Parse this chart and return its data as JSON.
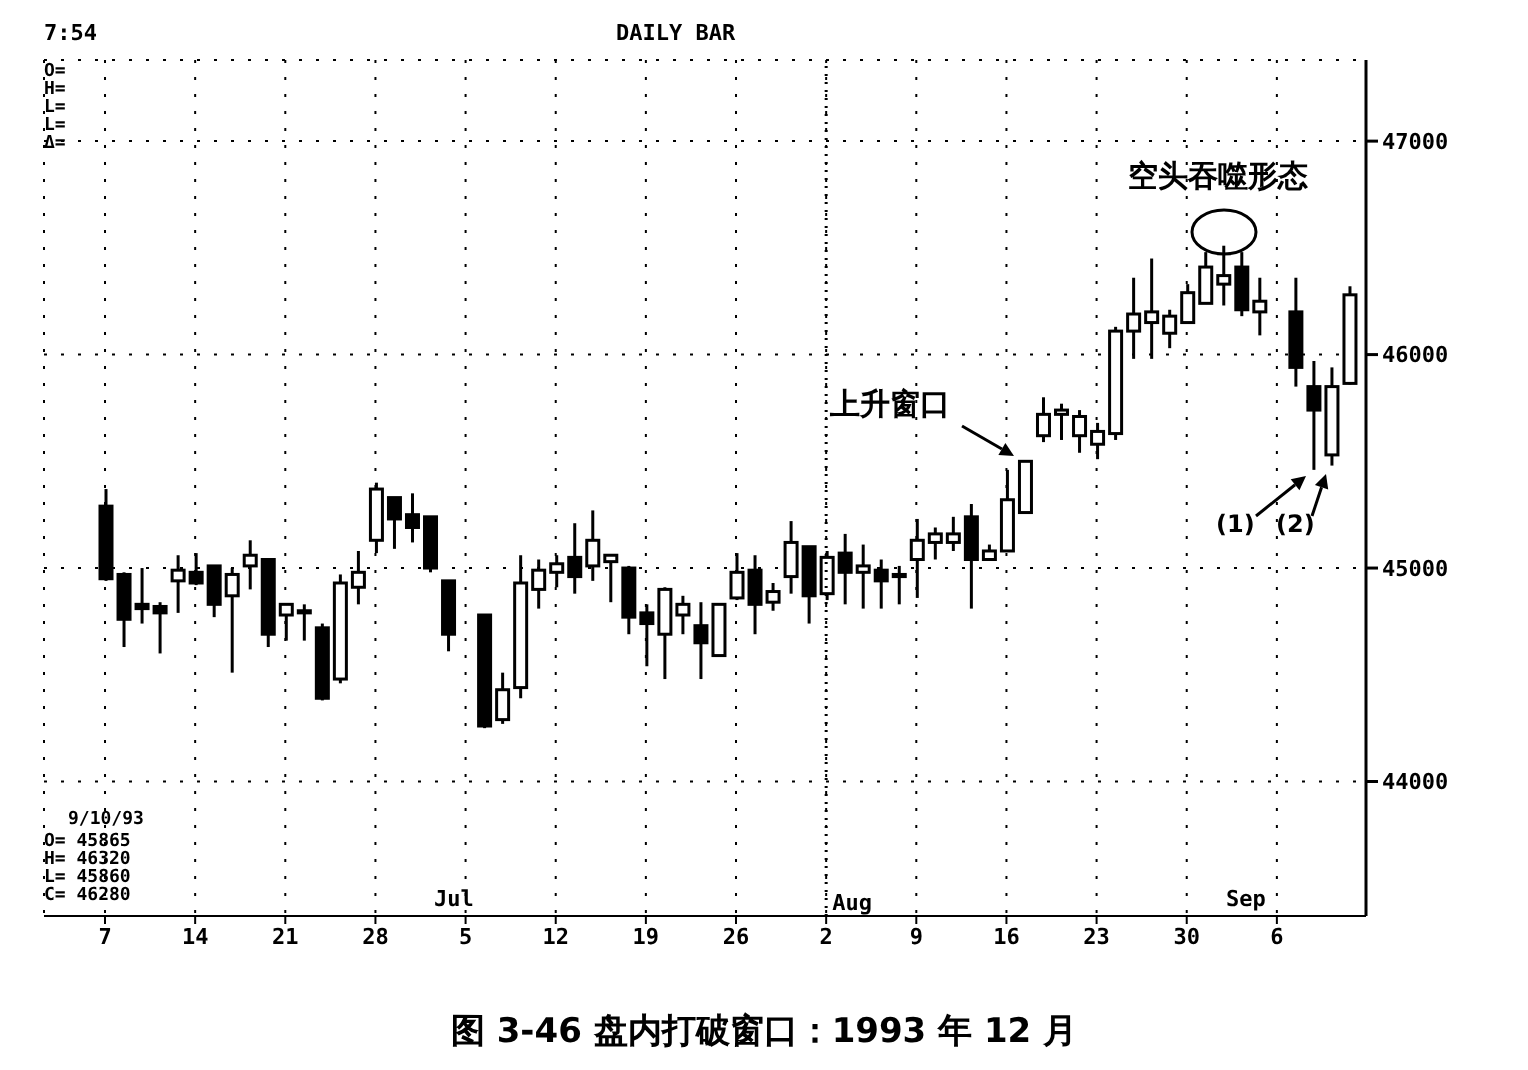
{
  "chart_data": {
    "type": "candlestick",
    "title": "图 3-46    盘内打破窗口：1993 年 12 月",
    "color": "#000000",
    "categories": [
      "7",
      null,
      null,
      null,
      null,
      "14",
      null,
      null,
      null,
      null,
      "21",
      null,
      null,
      null,
      null,
      "28",
      null,
      null,
      null,
      null,
      "5",
      null,
      null,
      null,
      null,
      "12",
      null,
      null,
      null,
      null,
      "19",
      null,
      null,
      null,
      null,
      "26",
      null,
      null,
      null,
      null,
      "2",
      null,
      null,
      null,
      null,
      "9",
      null,
      null,
      null,
      null,
      "16",
      null,
      null,
      null,
      null,
      "23",
      null,
      null,
      null,
      null,
      "30",
      null,
      null,
      null,
      null,
      "6",
      null,
      null,
      null,
      null
    ],
    "ohlc": [
      [
        45290,
        45370,
        44940,
        44950
      ],
      [
        44970,
        44980,
        44630,
        44760
      ],
      [
        44830,
        45000,
        44740,
        44810
      ],
      [
        44820,
        44840,
        44600,
        44790
      ],
      [
        44940,
        45060,
        44790,
        44990
      ],
      [
        44980,
        45070,
        44920,
        44930
      ],
      [
        45010,
        45010,
        44770,
        44830
      ],
      [
        44870,
        45000,
        44510,
        44970
      ],
      [
        45010,
        45130,
        44900,
        45060
      ],
      [
        45040,
        45040,
        44630,
        44690
      ],
      [
        44780,
        44830,
        44660,
        44830
      ],
      [
        44800,
        44830,
        44660,
        44790
      ],
      [
        44720,
        44740,
        44380,
        44390
      ],
      [
        44480,
        44970,
        44460,
        44930
      ],
      [
        44910,
        45080,
        44830,
        44980
      ],
      [
        45130,
        45400,
        45070,
        45370
      ],
      [
        45330,
        45330,
        45090,
        45230
      ],
      [
        45250,
        45350,
        45120,
        45190
      ],
      [
        45240,
        45240,
        44980,
        45000
      ],
      [
        44940,
        44940,
        44610,
        44690
      ],
      null,
      [
        44780,
        44780,
        44250,
        44260
      ],
      [
        44290,
        44510,
        44270,
        44430
      ],
      [
        44440,
        45060,
        44390,
        44930
      ],
      [
        44900,
        45040,
        44810,
        44990
      ],
      [
        44980,
        45060,
        44910,
        45020
      ],
      [
        45050,
        45210,
        44880,
        44960
      ],
      [
        45010,
        45270,
        44940,
        45130
      ],
      [
        45030,
        45060,
        44840,
        45060
      ],
      [
        45000,
        45010,
        44690,
        44770
      ],
      [
        44790,
        44830,
        44540,
        44740
      ],
      [
        44690,
        44910,
        44480,
        44900
      ],
      [
        44780,
        44870,
        44690,
        44830
      ],
      [
        44730,
        44840,
        44480,
        44650
      ],
      [
        44590,
        44830,
        44590,
        44830
      ],
      [
        44860,
        45070,
        44850,
        44980
      ],
      [
        44990,
        45060,
        44690,
        44830
      ],
      [
        44840,
        44930,
        44800,
        44890
      ],
      [
        44960,
        45220,
        44880,
        45120
      ],
      [
        45100,
        45100,
        44740,
        44870
      ],
      [
        44880,
        45080,
        44850,
        45050
      ],
      [
        45070,
        45160,
        44830,
        44980
      ],
      [
        44980,
        45110,
        44810,
        45010
      ],
      [
        44990,
        45040,
        44810,
        44940
      ],
      [
        44970,
        45010,
        44830,
        44960
      ],
      [
        45040,
        45230,
        44860,
        45130
      ],
      [
        45120,
        45190,
        45040,
        45160
      ],
      [
        45120,
        45240,
        45080,
        45160
      ],
      [
        45240,
        45300,
        44810,
        45040
      ],
      [
        45040,
        45110,
        45040,
        45080
      ],
      [
        45080,
        45460,
        45080,
        45320
      ],
      [
        45260,
        45500,
        45260,
        45500
      ],
      [
        45620,
        45800,
        45590,
        45720
      ],
      [
        45720,
        45770,
        45600,
        45740
      ],
      [
        45620,
        45740,
        45540,
        45710
      ],
      [
        45580,
        45680,
        45510,
        45640
      ],
      [
        45630,
        46130,
        45600,
        46110
      ],
      [
        46110,
        46360,
        45980,
        46190
      ],
      [
        46150,
        46450,
        45980,
        46200
      ],
      [
        46100,
        46210,
        46030,
        46180
      ],
      [
        46150,
        46330,
        46150,
        46290
      ],
      [
        46240,
        46480,
        46240,
        46410
      ],
      [
        46330,
        46510,
        46230,
        46370
      ],
      [
        46410,
        46480,
        46180,
        46210
      ],
      [
        46200,
        46360,
        46090,
        46250
      ],
      null,
      [
        46200,
        46360,
        45850,
        45940
      ],
      [
        45850,
        45970,
        45460,
        45740
      ],
      [
        45530,
        45940,
        45480,
        45850
      ],
      [
        45865,
        46320,
        45860,
        46280
      ]
    ],
    "ylim": [
      43370,
      47380
    ],
    "yticks": [
      44000,
      45000,
      46000,
      47000
    ],
    "grid": true,
    "ref_lines": [
      {
        "axis": "x",
        "value": "2",
        "label": "Aug",
        "line_style": "dotted"
      }
    ],
    "annotations": [
      "7:54",
      "DAILY BAR",
      "O=",
      "H=",
      "L=",
      "L=",
      "Δ=",
      "9/10/93",
      "O= 45865",
      "H= 46320",
      "L= 45860",
      "C= 46280",
      "上升窗口",
      "空头吞噬形态",
      "(1)",
      "(2)",
      "Jul",
      "Sep"
    ]
  }
}
